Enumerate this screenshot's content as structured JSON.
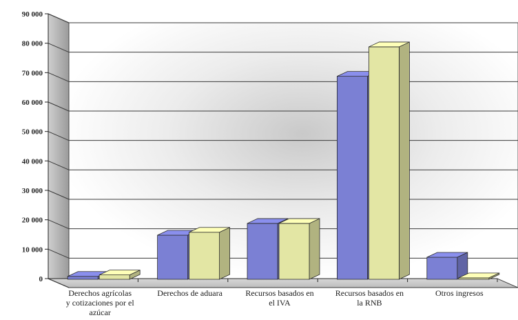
{
  "chart_data": {
    "type": "bar",
    "style": "3d-clustered-column",
    "categories": [
      [
        "Derechos agrícolas",
        "y cotizaciones por el",
        "azúcar"
      ],
      [
        "Derechos de aduara"
      ],
      [
        "Recursos basados en",
        "el IVA"
      ],
      [
        "Recursos basados en",
        "la RNB"
      ],
      [
        "Otros ingresos"
      ]
    ],
    "series": [
      {
        "values": [
          1000,
          15000,
          19000,
          69000,
          7500
        ],
        "color": "#7b80d4"
      },
      {
        "values": [
          1500,
          16000,
          19000,
          79000,
          500
        ],
        "color": "#e3e6a4"
      }
    ],
    "yticks": [
      "0",
      "10 000",
      "20 000",
      "30 000",
      "40 000",
      "50 000",
      "60 000",
      "70 000",
      "80 000",
      "90 000"
    ],
    "ylim": [
      0,
      90000
    ],
    "grid": true,
    "legend": "none",
    "title": "",
    "xlabel": "",
    "ylabel": ""
  }
}
